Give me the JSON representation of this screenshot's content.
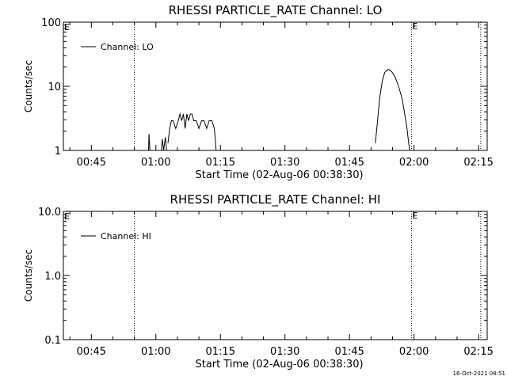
{
  "footer_timestamp": "16-Oct-2021 08:51",
  "chart_data": [
    {
      "type": "line",
      "title": "RHESSI PARTICLE_RATE Channel: LO",
      "xlabel": "Start Time (02-Aug-06 00:38:30)",
      "ylabel": "Counts/sec",
      "xlim": [
        38.5,
        137.0
      ],
      "ylim": [
        1,
        100
      ],
      "yscale": "log",
      "xticks": [
        45,
        60,
        75,
        90,
        105,
        120,
        135
      ],
      "xtick_labels": [
        "00:45",
        "01:00",
        "01:15",
        "01:30",
        "01:45",
        "02:00",
        "02:15"
      ],
      "yticks": [
        1,
        10,
        100
      ],
      "ytick_labels": [
        "1",
        "10",
        "100"
      ],
      "legend": {
        "placement": "top-left",
        "entries": [
          "Channel: LO"
        ]
      },
      "grid": false,
      "event_lines": [
        {
          "x": 55.0,
          "label": ""
        },
        {
          "x": 119.4,
          "label": "E"
        },
        {
          "x": 135.5,
          "label": ""
        }
      ],
      "start_marker": "E",
      "series": [
        {
          "name": "Channel: LO",
          "segments": [
            {
              "x": [
                58.3,
                58.4,
                58.6
              ],
              "y": [
                1.0,
                1.8,
                1.0
              ]
            },
            {
              "x": [
                61.3,
                61.5,
                61.8,
                62.2,
                62.5
              ],
              "y": [
                1.0,
                1.5,
                1.0,
                1.6,
                1.0
              ]
            },
            {
              "x": [
                62.8,
                63.2,
                63.6,
                64.0,
                64.6,
                65.2,
                65.6,
                66.0,
                66.4,
                66.8,
                67.2,
                67.6,
                68.0,
                68.4,
                68.8,
                69.4,
                70.0,
                70.6,
                71.2,
                71.8,
                72.4,
                73.0,
                73.6,
                74.0
              ],
              "y": [
                1.3,
                2.2,
                2.9,
                2.9,
                2.2,
                2.9,
                3.7,
                2.9,
                3.7,
                2.2,
                3.7,
                2.9,
                3.7,
                3.7,
                2.9,
                2.9,
                2.2,
                2.9,
                2.9,
                2.2,
                2.9,
                2.9,
                2.2,
                1.0
              ]
            },
            {
              "x": [
                111.0,
                111.5,
                112.0,
                112.6,
                113.2,
                114.0,
                114.8,
                115.6,
                116.4,
                117.2,
                117.8,
                118.3,
                118.7,
                119.0
              ],
              "y": [
                1.3,
                2.8,
                6.5,
                12.0,
                16.5,
                18.5,
                17.0,
                14.0,
                10.0,
                6.5,
                3.8,
                2.4,
                1.4,
                1.0
              ]
            }
          ]
        }
      ]
    },
    {
      "type": "line",
      "title": "RHESSI PARTICLE_RATE Channel: HI",
      "xlabel": "Start Time (02-Aug-06 00:38:30)",
      "ylabel": "Counts/sec",
      "xlim": [
        38.5,
        137.0
      ],
      "ylim": [
        0.1,
        10.0
      ],
      "yscale": "log",
      "xticks": [
        45,
        60,
        75,
        90,
        105,
        120,
        135
      ],
      "xtick_labels": [
        "00:45",
        "01:00",
        "01:15",
        "01:30",
        "01:45",
        "02:00",
        "02:15"
      ],
      "yticks": [
        0.1,
        1.0,
        10.0
      ],
      "ytick_labels": [
        "0.1",
        "1.0",
        "10.0"
      ],
      "legend": {
        "placement": "top-left",
        "entries": [
          "Channel: HI"
        ]
      },
      "grid": false,
      "event_lines": [
        {
          "x": 55.0,
          "label": ""
        },
        {
          "x": 119.4,
          "label": "E"
        },
        {
          "x": 135.5,
          "label": ""
        }
      ],
      "start_marker": "E",
      "series": [
        {
          "name": "Channel: HI",
          "segments": []
        }
      ]
    }
  ]
}
